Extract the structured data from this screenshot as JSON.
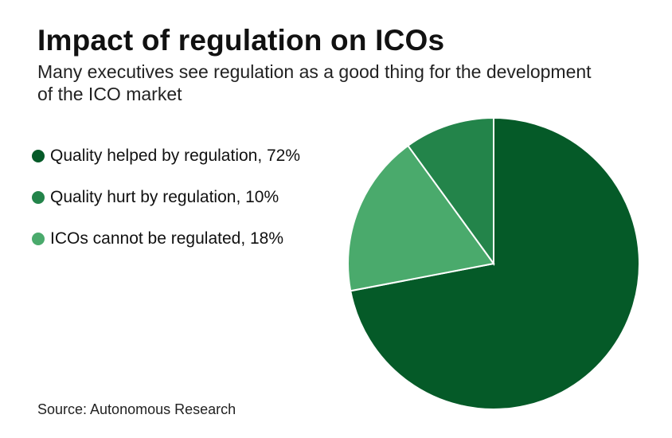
{
  "chart_data": {
    "type": "pie",
    "title": "Impact of regulation on ICOs",
    "subtitle": "Many executives see regulation as a good thing for the development of the ICO market",
    "legend_position": "left",
    "slices": [
      {
        "label": "Quality helped by regulation, 72%",
        "name": "Quality helped by regulation",
        "value": 72,
        "color": "#055a28"
      },
      {
        "label": "Quality hurt by regulation, 10%",
        "name": "Quality hurt by regulation",
        "value": 10,
        "color": "#23844a"
      },
      {
        "label": "ICOs cannot be regulated, 18%",
        "name": "ICOs cannot be regulated",
        "value": 18,
        "color": "#4aaa6c"
      }
    ],
    "draw_order": [
      0,
      2,
      1
    ],
    "source": "Source: Autonomous Research"
  }
}
